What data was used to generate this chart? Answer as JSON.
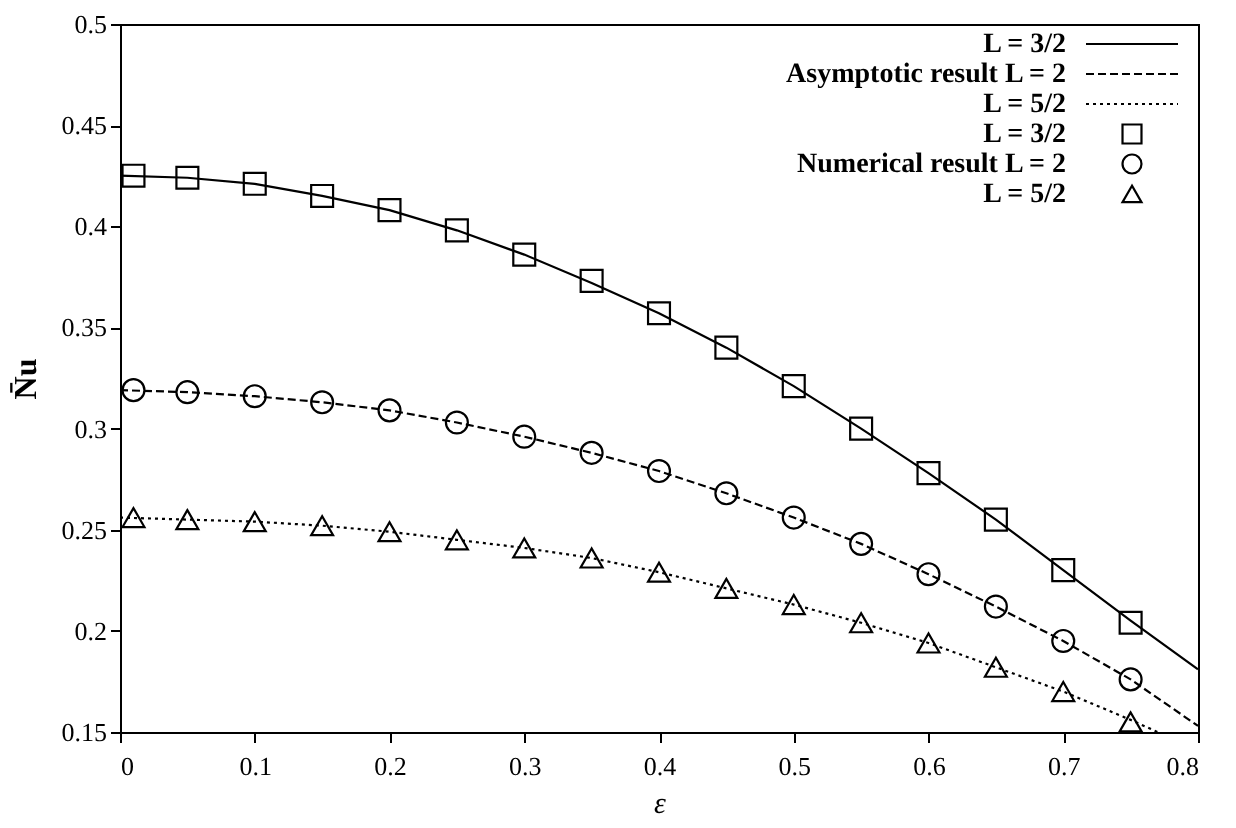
{
  "chart_data": {
    "type": "line",
    "xlabel": "ε",
    "ylabel": "N̄u",
    "xlim": [
      0,
      0.8
    ],
    "ylim": [
      0.15,
      0.5
    ],
    "xticks": [
      0,
      0.1,
      0.2,
      0.3,
      0.4,
      0.5,
      0.6,
      0.7,
      0.8
    ],
    "yticks": [
      0.15,
      0.2,
      0.25,
      0.3,
      0.35,
      0.4,
      0.45,
      0.5
    ],
    "legend": "top right",
    "series": [
      {
        "name": "L = 3/2",
        "line_style": "solid",
        "color": "#000000",
        "x": [
          0,
          0.05,
          0.1,
          0.15,
          0.2,
          0.25,
          0.3,
          0.35,
          0.4,
          0.45,
          0.5,
          0.55,
          0.6,
          0.65,
          0.7,
          0.75,
          0.8
        ],
        "values": [
          0.425,
          0.424,
          0.421,
          0.415,
          0.408,
          0.398,
          0.386,
          0.372,
          0.357,
          0.34,
          0.321,
          0.3,
          0.278,
          0.255,
          0.23,
          0.205,
          0.181
        ]
      },
      {
        "name": "Asymptotic result L = 2",
        "line_style": "dashed",
        "color": "#000000",
        "x": [
          0,
          0.05,
          0.1,
          0.15,
          0.2,
          0.25,
          0.3,
          0.35,
          0.4,
          0.45,
          0.5,
          0.55,
          0.6,
          0.65,
          0.7,
          0.75,
          0.8
        ],
        "values": [
          0.319,
          0.318,
          0.316,
          0.313,
          0.309,
          0.303,
          0.296,
          0.288,
          0.279,
          0.268,
          0.256,
          0.243,
          0.228,
          0.212,
          0.195,
          0.176,
          0.153
        ]
      },
      {
        "name": "L = 5/2",
        "line_style": "dotted",
        "color": "#000000",
        "x": [
          0,
          0.05,
          0.1,
          0.15,
          0.2,
          0.25,
          0.3,
          0.35,
          0.4,
          0.45,
          0.5,
          0.55,
          0.6,
          0.65,
          0.7,
          0.75,
          0.77
        ],
        "values": [
          0.256,
          0.255,
          0.254,
          0.252,
          0.249,
          0.245,
          0.241,
          0.236,
          0.229,
          0.221,
          0.213,
          0.204,
          0.194,
          0.182,
          0.17,
          0.156,
          0.15
        ]
      },
      {
        "name": "L = 3/2",
        "type": "scatter",
        "marker": "square",
        "color": "#000000",
        "x": [
          0.01,
          0.05,
          0.1,
          0.15,
          0.2,
          0.25,
          0.3,
          0.35,
          0.4,
          0.45,
          0.5,
          0.55,
          0.6,
          0.65,
          0.7,
          0.75
        ],
        "values": [
          0.425,
          0.424,
          0.421,
          0.415,
          0.408,
          0.398,
          0.386,
          0.373,
          0.357,
          0.34,
          0.321,
          0.3,
          0.278,
          0.255,
          0.23,
          0.204
        ]
      },
      {
        "name": "Numerical result L = 2",
        "type": "scatter",
        "marker": "circle",
        "color": "#000000",
        "x": [
          0.01,
          0.05,
          0.1,
          0.15,
          0.2,
          0.25,
          0.3,
          0.35,
          0.4,
          0.45,
          0.5,
          0.55,
          0.6,
          0.65,
          0.7,
          0.75
        ],
        "values": [
          0.319,
          0.318,
          0.316,
          0.313,
          0.309,
          0.303,
          0.296,
          0.288,
          0.279,
          0.268,
          0.256,
          0.243,
          0.228,
          0.212,
          0.195,
          0.176
        ]
      },
      {
        "name": "L = 5/2",
        "type": "scatter",
        "marker": "triangle",
        "color": "#000000",
        "x": [
          0.01,
          0.05,
          0.1,
          0.15,
          0.2,
          0.25,
          0.3,
          0.35,
          0.4,
          0.45,
          0.5,
          0.55,
          0.6,
          0.65,
          0.7,
          0.75
        ],
        "values": [
          0.256,
          0.255,
          0.254,
          0.252,
          0.249,
          0.245,
          0.241,
          0.236,
          0.229,
          0.221,
          0.213,
          0.204,
          0.194,
          0.182,
          0.17,
          0.155
        ]
      }
    ]
  }
}
